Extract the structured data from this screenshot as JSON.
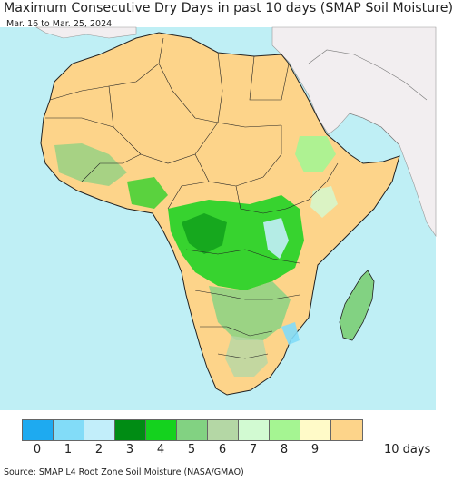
{
  "header": {
    "title": "Maximum Consecutive Dry Days in past 10 days (SMAP Soil Moisture)",
    "subtitle": "Mar. 16 to Mar. 25, 2024"
  },
  "map": {
    "region": "Africa",
    "colors": {
      "ocean": "#bfeff5",
      "land_outside": "#f2eef0",
      "dry_10": "#fdd48a"
    }
  },
  "legend": {
    "items": [
      {
        "label": "0",
        "color": "#1eaaf0"
      },
      {
        "label": "1",
        "color": "#82dcf8"
      },
      {
        "label": "2",
        "color": "#c2eefa"
      },
      {
        "label": "3",
        "color": "#008c14"
      },
      {
        "label": "4",
        "color": "#14d21e"
      },
      {
        "label": "5",
        "color": "#82d282"
      },
      {
        "label": "6",
        "color": "#b4d7a5"
      },
      {
        "label": "7",
        "color": "#d2fad2"
      },
      {
        "label": "8",
        "color": "#a5f592"
      },
      {
        "label": "9",
        "color": "#fffac8"
      },
      {
        "label": "10 days",
        "color": "#fdd48a"
      }
    ]
  },
  "footer": {
    "source": "Source: SMAP L4 Root Zone Soil Moisture (NASA/GMAO)"
  }
}
